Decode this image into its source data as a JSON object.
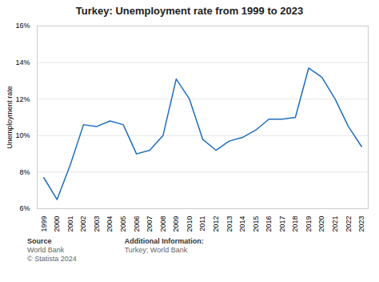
{
  "chart_data": {
    "type": "line",
    "title": "Turkey: Unemployment rate from 1999 to 2023",
    "x": [
      1999,
      2000,
      2001,
      2002,
      2003,
      2004,
      2005,
      2006,
      2007,
      2008,
      2009,
      2010,
      2011,
      2012,
      2013,
      2014,
      2015,
      2016,
      2017,
      2018,
      2019,
      2020,
      2021,
      2022,
      2023
    ],
    "values": [
      7.7,
      6.5,
      8.4,
      10.6,
      10.5,
      10.8,
      10.6,
      9.0,
      9.2,
      10.0,
      13.1,
      12.0,
      9.8,
      9.2,
      9.7,
      9.9,
      10.3,
      10.9,
      10.9,
      11.0,
      13.7,
      13.2,
      12.0,
      10.5,
      9.4
    ],
    "color": "#1f6dbf",
    "ylabel": "Unemployment rate",
    "xlim": [
      1998.5,
      2023.5
    ],
    "xticks": [
      1999,
      2000,
      2001,
      2002,
      2003,
      2004,
      2005,
      2006,
      2007,
      2008,
      2009,
      2010,
      2011,
      2012,
      2013,
      2014,
      2015,
      2016,
      2017,
      2018,
      2019,
      2020,
      2021,
      2022,
      2023
    ],
    "ylim": [
      6,
      16
    ],
    "yticks": [
      {
        "value": 6,
        "label": "6%"
      },
      {
        "value": 8,
        "label": "8%"
      },
      {
        "value": 10,
        "label": "10%"
      },
      {
        "value": 12,
        "label": "12%"
      },
      {
        "value": 14,
        "label": "14%"
      },
      {
        "value": 16,
        "label": "16%"
      }
    ],
    "grid": true,
    "annotations": [
      {
        "label": "Source",
        "text": "World Bank\n© Statista 2024"
      },
      {
        "label": "Additional Information:",
        "text": "Turkey; World Bank"
      }
    ]
  }
}
